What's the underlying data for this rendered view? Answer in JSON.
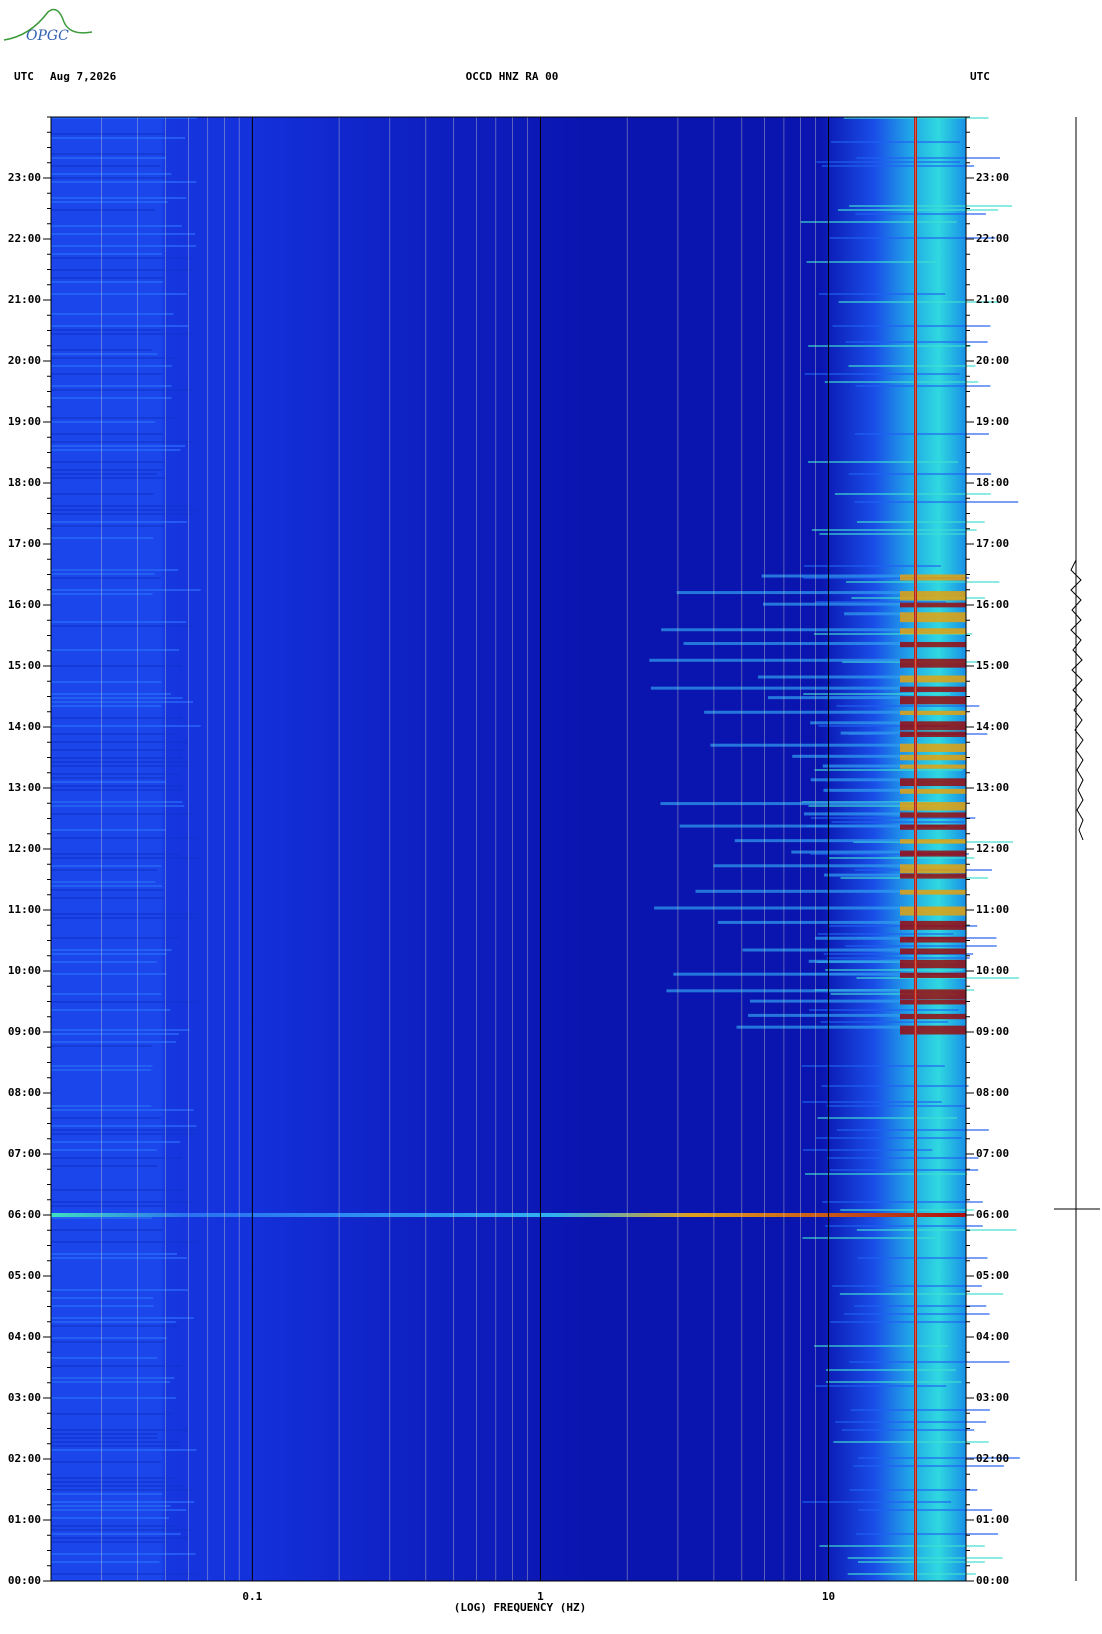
{
  "logo": "OPGC",
  "chart_data": {
    "type": "spectrogram",
    "title": "OCCD HNZ RA 00",
    "left_label": "UTC",
    "date": "Aug 7,2026",
    "right_label": "UTC",
    "xlabel": "(LOG) FREQUENCY (HZ)",
    "xscale": "log",
    "xlim": [
      0.02,
      30
    ],
    "xticks": [
      0.1,
      1,
      10
    ],
    "ylim": [
      0,
      24
    ],
    "yticks": [
      {
        "value": 0,
        "label": "00:00"
      },
      {
        "value": 1,
        "label": "01:00"
      },
      {
        "value": 2,
        "label": "02:00"
      },
      {
        "value": 3,
        "label": "03:00"
      },
      {
        "value": 4,
        "label": "04:00"
      },
      {
        "value": 5,
        "label": "05:00"
      },
      {
        "value": 6,
        "label": "06:00"
      },
      {
        "value": 7,
        "label": "07:00"
      },
      {
        "value": 8,
        "label": "08:00"
      },
      {
        "value": 9,
        "label": "09:00"
      },
      {
        "value": 10,
        "label": "10:00"
      },
      {
        "value": 11,
        "label": "11:00"
      },
      {
        "value": 12,
        "label": "12:00"
      },
      {
        "value": 13,
        "label": "13:00"
      },
      {
        "value": 14,
        "label": "14:00"
      },
      {
        "value": 15,
        "label": "15:00"
      },
      {
        "value": 16,
        "label": "16:00"
      },
      {
        "value": 17,
        "label": "17:00"
      },
      {
        "value": 18,
        "label": "18:00"
      },
      {
        "value": 19,
        "label": "19:00"
      },
      {
        "value": 20,
        "label": "20:00"
      },
      {
        "value": 21,
        "label": "21:00"
      },
      {
        "value": 22,
        "label": "22:00"
      },
      {
        "value": 23,
        "label": "23:00"
      }
    ]
  }
}
